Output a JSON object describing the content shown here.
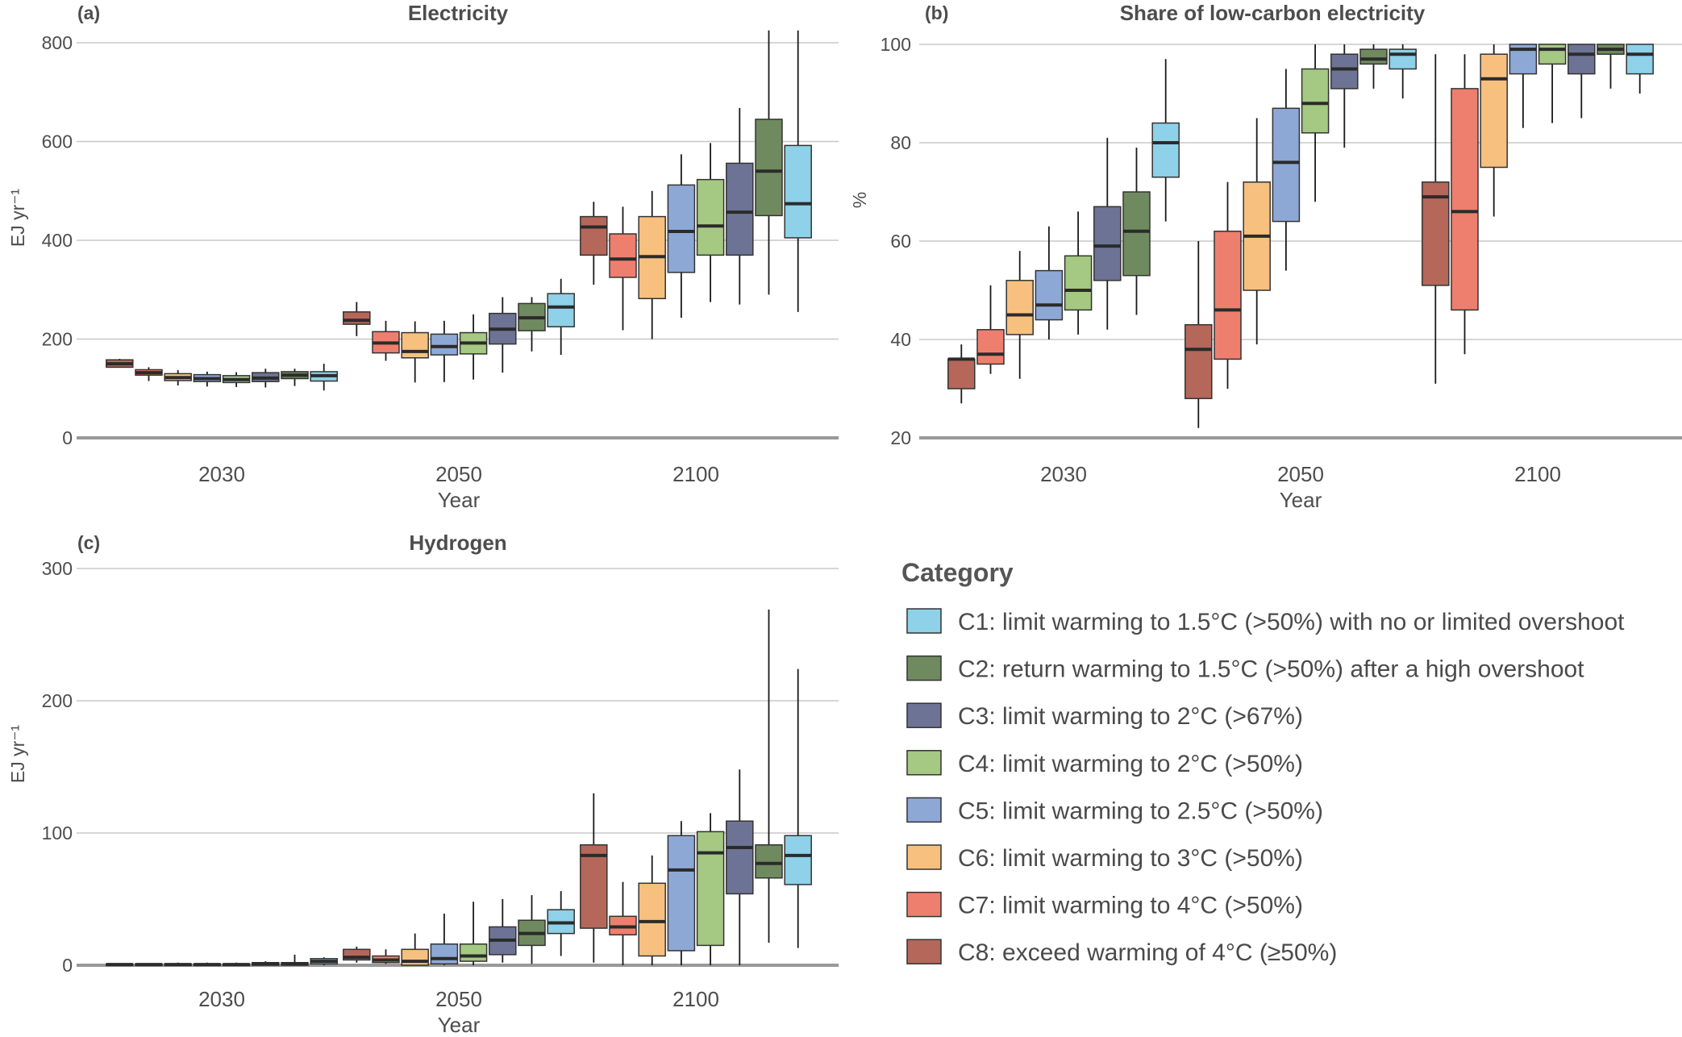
{
  "categories": [
    {
      "id": "C1",
      "label": "C1: limit warming to 1.5°C (>50%) with no or limited overshoot",
      "color": "#8ed1e8"
    },
    {
      "id": "C2",
      "label": "C2: return warming to 1.5°C (>50%) after a high overshoot",
      "color": "#6f8a5f"
    },
    {
      "id": "C3",
      "label": "C3: limit warming to 2°C (>67%)",
      "color": "#6d7394"
    },
    {
      "id": "C4",
      "label": "C4: limit warming to 2°C (>50%)",
      "color": "#a5c882"
    },
    {
      "id": "C5",
      "label": "C5: limit warming to 2.5°C (>50%)",
      "color": "#8ea8d6"
    },
    {
      "id": "C6",
      "label": "C6: limit warming to 3°C (>50%)",
      "color": "#f8c07f"
    },
    {
      "id": "C7",
      "label": "C7: limit warming to 4°C (>50%)",
      "color": "#ee7f6e"
    },
    {
      "id": "C8",
      "label": "C8: exceed warming of 4°C (≥50%)",
      "color": "#b5675a"
    }
  ],
  "legend": {
    "title": "Category"
  },
  "chart_data": [
    {
      "id": "a",
      "letter": "(a)",
      "type": "box",
      "title": "Electricity",
      "xlabel": "Year",
      "ylabel": "EJ yr⁻¹",
      "ylim": [
        0,
        850
      ],
      "yticks": [
        0,
        200,
        400,
        600,
        800
      ],
      "groups": [
        "2030",
        "2050",
        "2100"
      ],
      "series_order": [
        "C8",
        "C7",
        "C6",
        "C5",
        "C4",
        "C3",
        "C2",
        "C1"
      ],
      "boxes": {
        "2030": [
          {
            "cat": "C8",
            "whisker_low": 143,
            "q1": 143,
            "median": 150,
            "q3": 158,
            "whisker_high": 160
          },
          {
            "cat": "C7",
            "whisker_low": 115,
            "q1": 127,
            "median": 132,
            "q3": 138,
            "whisker_high": 143
          },
          {
            "cat": "C6",
            "whisker_low": 106,
            "q1": 116,
            "median": 122,
            "q3": 130,
            "whisker_high": 137
          },
          {
            "cat": "C5",
            "whisker_low": 104,
            "q1": 114,
            "median": 120,
            "q3": 128,
            "whisker_high": 134
          },
          {
            "cat": "C4",
            "whisker_low": 103,
            "q1": 112,
            "median": 118,
            "q3": 126,
            "whisker_high": 133
          },
          {
            "cat": "C3",
            "whisker_low": 102,
            "q1": 114,
            "median": 121,
            "q3": 132,
            "whisker_high": 140
          },
          {
            "cat": "C2",
            "whisker_low": 105,
            "q1": 120,
            "median": 127,
            "q3": 134,
            "whisker_high": 140
          },
          {
            "cat": "C1",
            "whisker_low": 96,
            "q1": 115,
            "median": 126,
            "q3": 134,
            "whisker_high": 150
          }
        ],
        "2050": [
          {
            "cat": "C8",
            "whisker_low": 206,
            "q1": 230,
            "median": 238,
            "q3": 255,
            "whisker_high": 275
          },
          {
            "cat": "C7",
            "whisker_low": 156,
            "q1": 172,
            "median": 192,
            "q3": 215,
            "whisker_high": 237
          },
          {
            "cat": "C6",
            "whisker_low": 112,
            "q1": 162,
            "median": 175,
            "q3": 213,
            "whisker_high": 236
          },
          {
            "cat": "C5",
            "whisker_low": 113,
            "q1": 168,
            "median": 185,
            "q3": 210,
            "whisker_high": 237
          },
          {
            "cat": "C4",
            "whisker_low": 118,
            "q1": 170,
            "median": 192,
            "q3": 213,
            "whisker_high": 250
          },
          {
            "cat": "C3",
            "whisker_low": 132,
            "q1": 190,
            "median": 220,
            "q3": 252,
            "whisker_high": 285
          },
          {
            "cat": "C2",
            "whisker_low": 175,
            "q1": 217,
            "median": 243,
            "q3": 272,
            "whisker_high": 285
          },
          {
            "cat": "C1",
            "whisker_low": 168,
            "q1": 225,
            "median": 265,
            "q3": 292,
            "whisker_high": 322
          }
        ],
        "2100": [
          {
            "cat": "C8",
            "whisker_low": 310,
            "q1": 370,
            "median": 427,
            "q3": 448,
            "whisker_high": 478
          },
          {
            "cat": "C7",
            "whisker_low": 218,
            "q1": 325,
            "median": 362,
            "q3": 413,
            "whisker_high": 468
          },
          {
            "cat": "C6",
            "whisker_low": 200,
            "q1": 282,
            "median": 367,
            "q3": 448,
            "whisker_high": 500
          },
          {
            "cat": "C5",
            "whisker_low": 243,
            "q1": 335,
            "median": 418,
            "q3": 512,
            "whisker_high": 574
          },
          {
            "cat": "C4",
            "whisker_low": 275,
            "q1": 370,
            "median": 429,
            "q3": 523,
            "whisker_high": 597
          },
          {
            "cat": "C3",
            "whisker_low": 270,
            "q1": 370,
            "median": 457,
            "q3": 556,
            "whisker_high": 668
          },
          {
            "cat": "C2",
            "whisker_low": 290,
            "q1": 450,
            "median": 540,
            "q3": 645,
            "whisker_high": 825
          },
          {
            "cat": "C1",
            "whisker_low": 255,
            "q1": 405,
            "median": 474,
            "q3": 592,
            "whisker_high": 825
          }
        ]
      }
    },
    {
      "id": "b",
      "letter": "(b)",
      "type": "box",
      "title": "Share of low-carbon electricity",
      "xlabel": "Year",
      "ylabel": "%",
      "ylim": [
        20,
        100
      ],
      "yticks": [
        20,
        40,
        60,
        80,
        100
      ],
      "groups": [
        "2030",
        "2050",
        "2100"
      ],
      "series_order": [
        "C8",
        "C7",
        "C6",
        "C5",
        "C4",
        "C3",
        "C2",
        "C1"
      ],
      "boxes": {
        "2030": [
          {
            "cat": "C8",
            "whisker_low": 27,
            "q1": 30,
            "median": 36,
            "q3": 36,
            "whisker_high": 39
          },
          {
            "cat": "C7",
            "whisker_low": 33,
            "q1": 35,
            "median": 37,
            "q3": 42,
            "whisker_high": 51
          },
          {
            "cat": "C6",
            "whisker_low": 32,
            "q1": 41,
            "median": 45,
            "q3": 52,
            "whisker_high": 58
          },
          {
            "cat": "C5",
            "whisker_low": 40,
            "q1": 44,
            "median": 47,
            "q3": 54,
            "whisker_high": 63
          },
          {
            "cat": "C4",
            "whisker_low": 41,
            "q1": 46,
            "median": 50,
            "q3": 57,
            "whisker_high": 66
          },
          {
            "cat": "C3",
            "whisker_low": 42,
            "q1": 52,
            "median": 59,
            "q3": 67,
            "whisker_high": 81
          },
          {
            "cat": "C2",
            "whisker_low": 45,
            "q1": 53,
            "median": 62,
            "q3": 70,
            "whisker_high": 79
          },
          {
            "cat": "C1",
            "whisker_low": 64,
            "q1": 73,
            "median": 80,
            "q3": 84,
            "whisker_high": 97
          }
        ],
        "2050": [
          {
            "cat": "C8",
            "whisker_low": 22,
            "q1": 28,
            "median": 38,
            "q3": 43,
            "whisker_high": 60
          },
          {
            "cat": "C7",
            "whisker_low": 30,
            "q1": 36,
            "median": 46,
            "q3": 62,
            "whisker_high": 72
          },
          {
            "cat": "C6",
            "whisker_low": 39,
            "q1": 50,
            "median": 61,
            "q3": 72,
            "whisker_high": 85
          },
          {
            "cat": "C5",
            "whisker_low": 54,
            "q1": 64,
            "median": 76,
            "q3": 87,
            "whisker_high": 95
          },
          {
            "cat": "C4",
            "whisker_low": 68,
            "q1": 82,
            "median": 88,
            "q3": 95,
            "whisker_high": 100
          },
          {
            "cat": "C3",
            "whisker_low": 79,
            "q1": 91,
            "median": 95,
            "q3": 98,
            "whisker_high": 100
          },
          {
            "cat": "C2",
            "whisker_low": 91,
            "q1": 96,
            "median": 97,
            "q3": 99,
            "whisker_high": 100
          },
          {
            "cat": "C1",
            "whisker_low": 89,
            "q1": 95,
            "median": 98,
            "q3": 99,
            "whisker_high": 100
          }
        ],
        "2100": [
          {
            "cat": "C8",
            "whisker_low": 31,
            "q1": 51,
            "median": 69,
            "q3": 72,
            "whisker_high": 98
          },
          {
            "cat": "C7",
            "whisker_low": 37,
            "q1": 46,
            "median": 66,
            "q3": 91,
            "whisker_high": 98
          },
          {
            "cat": "C6",
            "whisker_low": 65,
            "q1": 75,
            "median": 93,
            "q3": 98,
            "whisker_high": 100
          },
          {
            "cat": "C5",
            "whisker_low": 83,
            "q1": 94,
            "median": 99,
            "q3": 100,
            "whisker_high": 100
          },
          {
            "cat": "C4",
            "whisker_low": 84,
            "q1": 96,
            "median": 99,
            "q3": 100,
            "whisker_high": 100
          },
          {
            "cat": "C3",
            "whisker_low": 85,
            "q1": 94,
            "median": 98,
            "q3": 100,
            "whisker_high": 100
          },
          {
            "cat": "C2",
            "whisker_low": 91,
            "q1": 98,
            "median": 99,
            "q3": 100,
            "whisker_high": 100
          },
          {
            "cat": "C1",
            "whisker_low": 90,
            "q1": 94,
            "median": 98,
            "q3": 100,
            "whisker_high": 100
          }
        ]
      }
    },
    {
      "id": "c",
      "letter": "(c)",
      "type": "box",
      "title": "Hydrogen",
      "xlabel": "Year",
      "ylabel": "EJ yr⁻¹",
      "ylim": [
        0,
        300
      ],
      "yticks": [
        0,
        100,
        200,
        300
      ],
      "groups": [
        "2030",
        "2050",
        "2100"
      ],
      "series_order": [
        "C8",
        "C7",
        "C6",
        "C5",
        "C4",
        "C3",
        "C2",
        "C1"
      ],
      "boxes": {
        "2030": [
          {
            "cat": "C8",
            "whisker_low": 0,
            "q1": 0,
            "median": 0.5,
            "q3": 1,
            "whisker_high": 1
          },
          {
            "cat": "C7",
            "whisker_low": 0,
            "q1": 0,
            "median": 0.5,
            "q3": 1,
            "whisker_high": 1
          },
          {
            "cat": "C6",
            "whisker_low": 0,
            "q1": 0,
            "median": 0.5,
            "q3": 1,
            "whisker_high": 2
          },
          {
            "cat": "C5",
            "whisker_low": 0,
            "q1": 0,
            "median": 0.5,
            "q3": 1,
            "whisker_high": 2
          },
          {
            "cat": "C4",
            "whisker_low": 0,
            "q1": 0,
            "median": 0.5,
            "q3": 1,
            "whisker_high": 2
          },
          {
            "cat": "C3",
            "whisker_low": 0,
            "q1": 0,
            "median": 1,
            "q3": 2,
            "whisker_high": 3
          },
          {
            "cat": "C2",
            "whisker_low": 0,
            "q1": 0,
            "median": 1,
            "q3": 2,
            "whisker_high": 8
          },
          {
            "cat": "C1",
            "whisker_low": 0,
            "q1": 1,
            "median": 3,
            "q3": 5,
            "whisker_high": 6
          }
        ],
        "2050": [
          {
            "cat": "C8",
            "whisker_low": 2,
            "q1": 4,
            "median": 6,
            "q3": 12,
            "whisker_high": 14
          },
          {
            "cat": "C7",
            "whisker_low": 1,
            "q1": 2,
            "median": 4,
            "q3": 7,
            "whisker_high": 12
          },
          {
            "cat": "C6",
            "whisker_low": 0,
            "q1": 0,
            "median": 3,
            "q3": 12,
            "whisker_high": 24
          },
          {
            "cat": "C5",
            "whisker_low": 0,
            "q1": 1,
            "median": 5,
            "q3": 16,
            "whisker_high": 39
          },
          {
            "cat": "C4",
            "whisker_low": 0,
            "q1": 3,
            "median": 7,
            "q3": 16,
            "whisker_high": 48
          },
          {
            "cat": "C3",
            "whisker_low": 2,
            "q1": 8,
            "median": 19,
            "q3": 29,
            "whisker_high": 50
          },
          {
            "cat": "C2",
            "whisker_low": 1,
            "q1": 15,
            "median": 24,
            "q3": 34,
            "whisker_high": 53
          },
          {
            "cat": "C1",
            "whisker_low": 7,
            "q1": 24,
            "median": 32,
            "q3": 42,
            "whisker_high": 56
          }
        ],
        "2100": [
          {
            "cat": "C8",
            "whisker_low": 2,
            "q1": 28,
            "median": 83,
            "q3": 91,
            "whisker_high": 130
          },
          {
            "cat": "C7",
            "whisker_low": 0,
            "q1": 23,
            "median": 29,
            "q3": 37,
            "whisker_high": 63
          },
          {
            "cat": "C6",
            "whisker_low": 0,
            "q1": 7,
            "median": 33,
            "q3": 62,
            "whisker_high": 83
          },
          {
            "cat": "C5",
            "whisker_low": 0,
            "q1": 11,
            "median": 72,
            "q3": 98,
            "whisker_high": 109
          },
          {
            "cat": "C4",
            "whisker_low": 0,
            "q1": 15,
            "median": 85,
            "q3": 101,
            "whisker_high": 115
          },
          {
            "cat": "C3",
            "whisker_low": 0,
            "q1": 54,
            "median": 89,
            "q3": 109,
            "whisker_high": 148
          },
          {
            "cat": "C2",
            "whisker_low": 17,
            "q1": 66,
            "median": 77,
            "q3": 91,
            "whisker_high": 269
          },
          {
            "cat": "C1",
            "whisker_low": 13,
            "q1": 61,
            "median": 83,
            "q3": 98,
            "whisker_high": 224
          }
        ]
      }
    }
  ]
}
